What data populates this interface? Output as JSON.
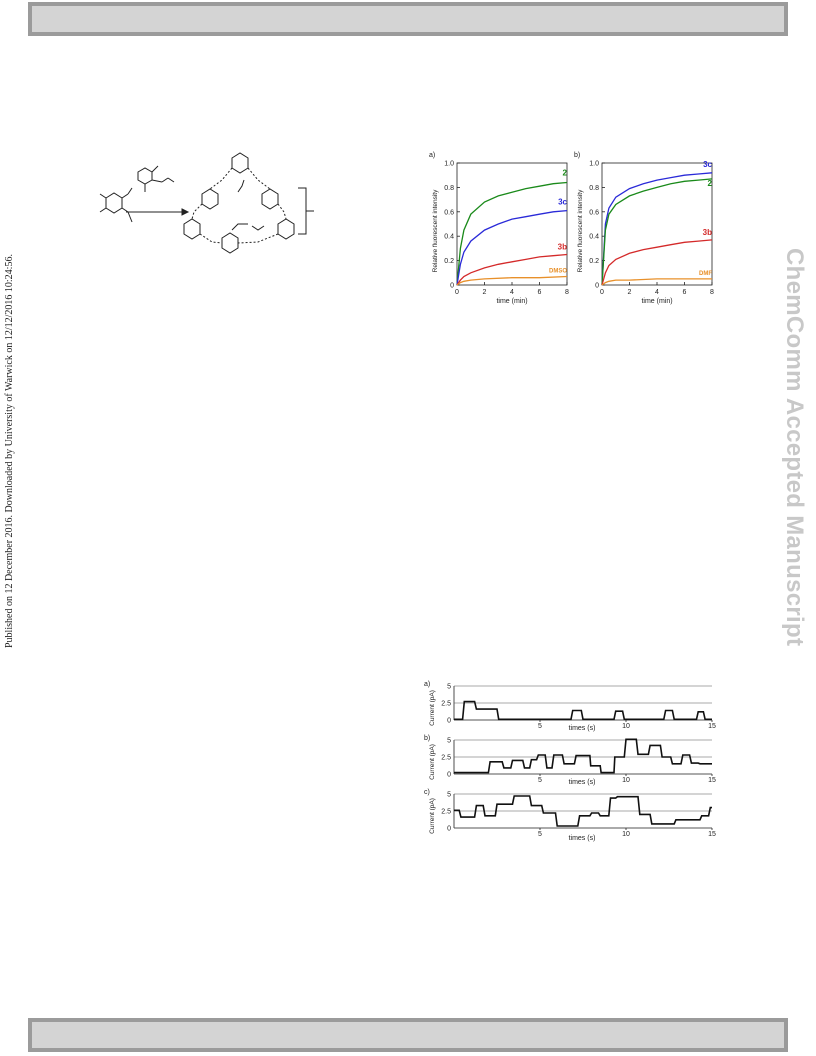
{
  "header": {
    "journal_label": ""
  },
  "footer": {
    "journal_label": ""
  },
  "sidebar": {
    "publication_note": "Published on 12 December 2016. Downloaded by University of Warwick on 12/12/2016 10:24:56.",
    "watermark": "ChemComm Accepted Manuscript"
  },
  "chart_data": [
    {
      "type": "line",
      "panel_label": "a)",
      "xlabel": "time (min)",
      "ylabel": "Relative fluorescent intensity",
      "xlim": [
        0,
        8
      ],
      "ylim": [
        0,
        1.0
      ],
      "xticks": [
        "0",
        "2",
        "4",
        "6",
        "8"
      ],
      "yticks": [
        "0",
        "0.2",
        "0.4",
        "0.6",
        "0.8",
        "1.0"
      ],
      "series": [
        {
          "name": "2",
          "color": "#1a8a1a",
          "x": [
            0,
            0.25,
            0.5,
            1,
            2,
            3,
            4,
            5,
            6,
            7,
            8
          ],
          "y": [
            0,
            0.3,
            0.45,
            0.58,
            0.68,
            0.73,
            0.76,
            0.79,
            0.81,
            0.83,
            0.84
          ]
        },
        {
          "name": "3c",
          "color": "#2a2ad8",
          "x": [
            0,
            0.25,
            0.5,
            1,
            2,
            3,
            4,
            5,
            6,
            7,
            8
          ],
          "y": [
            0,
            0.17,
            0.27,
            0.36,
            0.45,
            0.5,
            0.54,
            0.56,
            0.58,
            0.6,
            0.61
          ]
        },
        {
          "name": "3b",
          "color": "#d42a2a",
          "x": [
            0,
            0.25,
            0.5,
            1,
            2,
            3,
            4,
            5,
            6,
            7,
            8
          ],
          "y": [
            0,
            0.04,
            0.07,
            0.1,
            0.14,
            0.17,
            0.19,
            0.21,
            0.23,
            0.24,
            0.25
          ]
        },
        {
          "name": "DMSO",
          "color": "#e8902a",
          "x": [
            0,
            0.25,
            0.5,
            1,
            2,
            4,
            6,
            8
          ],
          "y": [
            0,
            0.02,
            0.03,
            0.04,
            0.05,
            0.06,
            0.06,
            0.07
          ]
        }
      ]
    },
    {
      "type": "line",
      "panel_label": "b)",
      "xlabel": "time (min)",
      "ylabel": "Relative fluorescent intensity",
      "xlim": [
        0,
        8
      ],
      "ylim": [
        0,
        1.0
      ],
      "xticks": [
        "0",
        "2",
        "4",
        "6",
        "8"
      ],
      "yticks": [
        "0",
        "0.2",
        "0.4",
        "0.6",
        "0.8",
        "1.0"
      ],
      "series": [
        {
          "name": "3c",
          "color": "#2a2ad8",
          "x": [
            0,
            0.25,
            0.5,
            1,
            2,
            3,
            4,
            5,
            6,
            7,
            8
          ],
          "y": [
            0,
            0.5,
            0.63,
            0.72,
            0.79,
            0.83,
            0.86,
            0.88,
            0.9,
            0.91,
            0.92
          ]
        },
        {
          "name": "2",
          "color": "#1a8a1a",
          "x": [
            0,
            0.25,
            0.5,
            1,
            2,
            3,
            4,
            5,
            6,
            7,
            8
          ],
          "y": [
            0,
            0.45,
            0.58,
            0.66,
            0.73,
            0.77,
            0.8,
            0.83,
            0.85,
            0.86,
            0.87
          ]
        },
        {
          "name": "3b",
          "color": "#d42a2a",
          "x": [
            0,
            0.25,
            0.5,
            1,
            2,
            3,
            4,
            5,
            6,
            7,
            8
          ],
          "y": [
            0,
            0.1,
            0.16,
            0.21,
            0.26,
            0.29,
            0.31,
            0.33,
            0.35,
            0.36,
            0.37
          ]
        },
        {
          "name": "DMF",
          "color": "#e8902a",
          "x": [
            0,
            0.25,
            0.5,
            1,
            2,
            4,
            6,
            8
          ],
          "y": [
            0,
            0.02,
            0.03,
            0.04,
            0.04,
            0.05,
            0.05,
            0.05
          ]
        }
      ]
    },
    {
      "type": "line",
      "panel_label": "a)",
      "xlabel": "times (s)",
      "ylabel": "Current (pA)",
      "xlim": [
        0,
        15
      ],
      "ylim": [
        0,
        5
      ],
      "xticks": [
        "5",
        "10",
        "15"
      ],
      "yticks": [
        "0",
        "2.5",
        "5"
      ],
      "series": [
        {
          "name": "",
          "color": "#111111",
          "x": [
            0,
            0.5,
            0.6,
            1.2,
            1.3,
            2.5,
            2.6,
            6.8,
            6.9,
            7.4,
            7.5,
            9.3,
            9.4,
            9.8,
            9.9,
            12.2,
            12.3,
            12.7,
            12.8,
            14.1,
            14.2,
            14.5,
            14.6,
            15
          ],
          "y": [
            0.1,
            0.1,
            2.7,
            2.7,
            1.6,
            1.6,
            0.1,
            0.1,
            1.4,
            1.4,
            0.1,
            0.1,
            1.3,
            1.3,
            0.1,
            0.1,
            1.4,
            1.4,
            0.1,
            0.1,
            1.2,
            1.2,
            0.1,
            0.1
          ]
        }
      ]
    },
    {
      "type": "line",
      "panel_label": "b)",
      "xlabel": "times (s)",
      "ylabel": "Current (pA)",
      "xlim": [
        0,
        15
      ],
      "ylim": [
        0,
        5
      ],
      "xticks": [
        "5",
        "10",
        "15"
      ],
      "yticks": [
        "0",
        "2.5",
        "5"
      ],
      "series": [
        {
          "name": "",
          "color": "#111111",
          "x": [
            0,
            2.0,
            2.1,
            2.8,
            2.9,
            3.3,
            3.4,
            4.0,
            4.1,
            4.4,
            4.5,
            4.8,
            4.9,
            5.3,
            5.4,
            5.7,
            5.8,
            6.3,
            6.4,
            7.0,
            7.1,
            7.9,
            7.95,
            8.5,
            8.55,
            9.3,
            9.35,
            9.9,
            10.0,
            10.6,
            10.7,
            11.3,
            11.4,
            12.0,
            12.1,
            12.6,
            12.7,
            13.2,
            13.3,
            13.7,
            13.8,
            14.2,
            14.3,
            15
          ],
          "y": [
            0.2,
            0.2,
            1.8,
            1.8,
            0.9,
            0.9,
            2.0,
            2.0,
            0.9,
            0.9,
            2.1,
            2.1,
            2.8,
            2.8,
            0.9,
            0.9,
            2.8,
            2.8,
            1.5,
            1.5,
            2.7,
            2.7,
            1.2,
            1.2,
            0.2,
            0.2,
            2.5,
            2.5,
            5.1,
            5.1,
            2.9,
            2.9,
            4.2,
            4.2,
            2.5,
            2.5,
            1.5,
            1.5,
            2.8,
            2.8,
            1.6,
            1.6,
            1.5,
            1.5
          ]
        }
      ]
    },
    {
      "type": "line",
      "panel_label": "c)",
      "xlabel": "times (s)",
      "ylabel": "Current (pA)",
      "xlim": [
        0,
        15
      ],
      "ylim": [
        0,
        5
      ],
      "xticks": [
        "5",
        "10",
        "15"
      ],
      "yticks": [
        "0",
        "2.5",
        "5"
      ],
      "series": [
        {
          "name": "",
          "color": "#111111",
          "x": [
            0,
            0.3,
            0.4,
            1.2,
            1.3,
            1.7,
            1.8,
            2.4,
            2.5,
            3.4,
            3.5,
            4.4,
            4.5,
            5.1,
            5.2,
            5.9,
            6.0,
            7.2,
            7.3,
            7.9,
            8.0,
            8.4,
            8.5,
            9.0,
            9.1,
            9.4,
            9.5,
            10.7,
            10.8,
            11.4,
            11.5,
            12.8,
            12.9,
            14.3,
            14.4,
            14.8,
            14.9,
            15
          ],
          "y": [
            2.6,
            2.6,
            1.6,
            1.6,
            3.3,
            3.3,
            1.8,
            1.8,
            3.5,
            3.5,
            4.7,
            4.7,
            3.3,
            3.3,
            2.2,
            2.2,
            0.3,
            0.3,
            1.8,
            1.8,
            2.2,
            2.2,
            1.8,
            1.8,
            4.4,
            4.4,
            4.6,
            4.6,
            2.0,
            2.0,
            0.6,
            0.6,
            1.2,
            1.2,
            1.8,
            1.8,
            3.0,
            3.0
          ]
        }
      ]
    }
  ]
}
